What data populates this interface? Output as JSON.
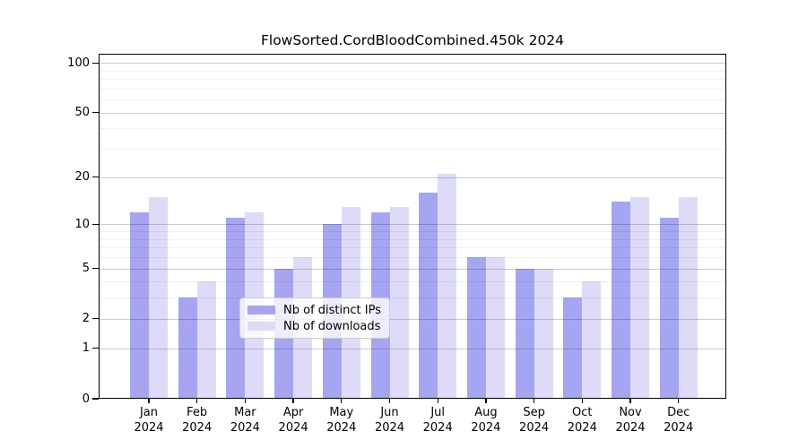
{
  "title": "FlowSorted.CordBloodCombined.450k 2024",
  "chart_data": {
    "type": "bar",
    "title": "FlowSorted.CordBloodCombined.450k 2024",
    "categories": [
      "Jan",
      "Feb",
      "Mar",
      "Apr",
      "May",
      "Jun",
      "Jul",
      "Aug",
      "Sep",
      "Oct",
      "Nov",
      "Dec"
    ],
    "year_label": "2024",
    "series": [
      {
        "name": "Nb of distinct IPs",
        "color": "#a5a5f2",
        "values": [
          12,
          3,
          11,
          5,
          10,
          12,
          16,
          6,
          5,
          3,
          14,
          11
        ]
      },
      {
        "name": "Nb of downloads",
        "color": "#dcdcf8",
        "values": [
          15,
          4,
          12,
          6,
          13,
          13,
          21,
          6,
          5,
          4,
          15,
          15
        ]
      }
    ],
    "xlabel": "",
    "ylabel": "",
    "yscale": "log1p",
    "ylim": [
      0,
      113
    ],
    "yticks": [
      0,
      1,
      2,
      5,
      10,
      20,
      50,
      100
    ],
    "minor_gridlines": [
      3,
      4,
      6,
      7,
      8,
      9,
      30,
      40,
      60,
      70,
      80,
      90
    ],
    "grid": true,
    "legend_position": "lower center"
  }
}
